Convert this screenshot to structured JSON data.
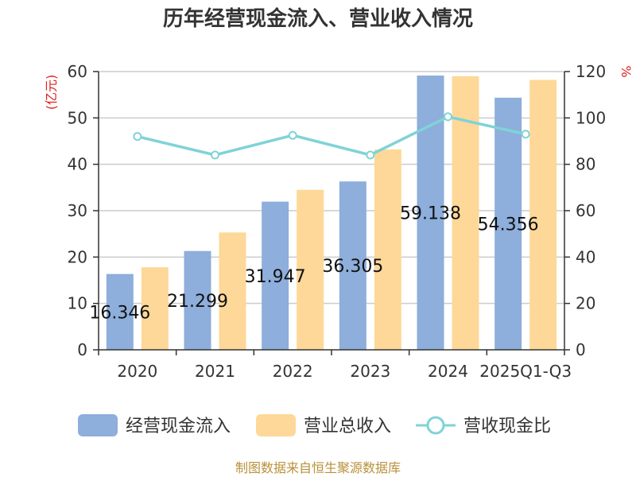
{
  "chart_data": {
    "type": "bar",
    "title": "历年经营现金流入、营业收入情况",
    "categories": [
      "2020",
      "2021",
      "2022",
      "2023",
      "2024",
      "2025Q1-Q3"
    ],
    "series": [
      {
        "name": "经营现金流入",
        "type": "bar",
        "axis": "left",
        "color": "#8eaedb",
        "values": [
          16.346,
          21.299,
          31.947,
          36.305,
          59.138,
          54.356
        ]
      },
      {
        "name": "营业总收入",
        "type": "bar",
        "axis": "left",
        "color": "#fed898",
        "values": [
          17.8,
          25.3,
          34.5,
          43.2,
          59.0,
          58.2
        ]
      },
      {
        "name": "营收现金比",
        "type": "line",
        "axis": "right",
        "color": "#7fd3d7",
        "values": [
          92,
          84,
          92.5,
          84,
          100.5,
          93
        ]
      }
    ],
    "data_labels": [
      "16.346",
      "21.299",
      "31.947",
      "36.305",
      "59.138",
      "54.356"
    ],
    "y_left": {
      "unit": "(亿元)",
      "ylim": [
        0,
        60
      ],
      "ticks": [
        "0",
        "10",
        "20",
        "30",
        "40",
        "50",
        "60"
      ]
    },
    "y_right": {
      "unit": "%",
      "ylim": [
        0,
        120
      ],
      "ticks": [
        "0",
        "20",
        "40",
        "60",
        "80",
        "100",
        "120"
      ]
    },
    "grid": true,
    "legend_position": "bottom",
    "unit_color": "#e02020"
  },
  "source": {
    "text": "制图数据来自恒生聚源数据库",
    "color": "#b8913a"
  }
}
